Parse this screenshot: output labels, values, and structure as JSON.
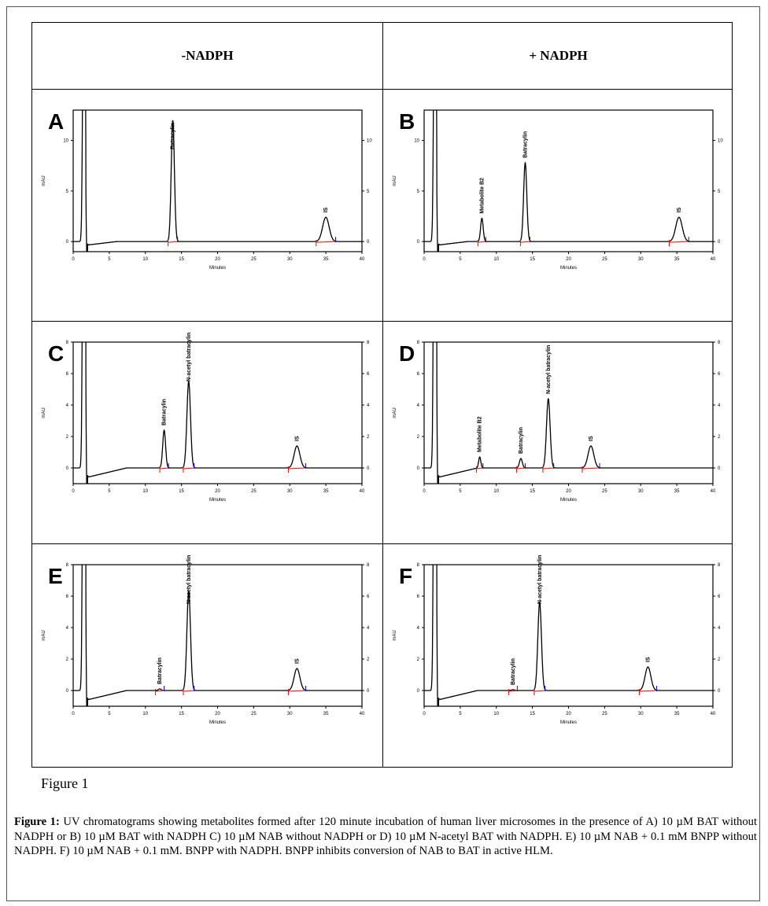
{
  "header": {
    "left": "-NADPH",
    "right": "+ NADPH"
  },
  "figure_label": "Figure 1",
  "caption": {
    "lead": "Figure 1:",
    "text": " UV chromatograms showing metabolites formed after 120 minute incubation of human liver microsomes in the presence of A) 10 µM BAT without NADPH or B) 10 µM BAT with NADPH C) 10 µM NAB without NADPH or D) 10 µM N-acetyl BAT with NADPH. E) 10 µM NAB + 0.1 mM BNPP without NADPH. F) 10 µM NAB + 0.1 mM. BNPP with NADPH. BNPP inhibits conversion of NAB to BAT in active HLM."
  },
  "colors": {
    "trace": "#000000",
    "start_marker": "#ff0000",
    "end_marker": "#0000ff"
  },
  "chart_data": [
    {
      "panel": "A",
      "type": "line",
      "xlabel": "Minutes",
      "ylabel": "mAU",
      "xlim": [
        0,
        40
      ],
      "ylim": [
        -1,
        13
      ],
      "xticks": [
        0,
        5,
        10,
        15,
        20,
        25,
        30,
        35,
        40
      ],
      "yticks": [
        0,
        5,
        10
      ],
      "baseline_dip": false,
      "peaks": [
        {
          "rt": 1.5,
          "height": 40,
          "width": 0.15,
          "label": ""
        },
        {
          "rt": 13.8,
          "height": 12.0,
          "width": 0.22,
          "label": "Batracylin"
        },
        {
          "rt": 35.0,
          "height": 2.4,
          "width": 0.45,
          "label": "IS"
        }
      ]
    },
    {
      "panel": "B",
      "type": "line",
      "xlabel": "Minutes",
      "ylabel": "mAU",
      "xlim": [
        0,
        40
      ],
      "ylim": [
        -1,
        13
      ],
      "xticks": [
        0,
        5,
        10,
        15,
        20,
        25,
        30,
        35,
        40
      ],
      "yticks": [
        0,
        5,
        10
      ],
      "baseline_dip": false,
      "peaks": [
        {
          "rt": 1.5,
          "height": 40,
          "width": 0.15,
          "label": ""
        },
        {
          "rt": 8.0,
          "height": 2.3,
          "width": 0.18,
          "label": "Metabolite B2"
        },
        {
          "rt": 14.0,
          "height": 7.8,
          "width": 0.22,
          "label": "Batracylin"
        },
        {
          "rt": 35.3,
          "height": 2.4,
          "width": 0.45,
          "label": "IS"
        }
      ]
    },
    {
      "panel": "C",
      "type": "line",
      "xlabel": "Minutes",
      "ylabel": "mAU",
      "xlim": [
        0,
        40
      ],
      "ylim": [
        -1,
        8
      ],
      "xticks": [
        0,
        5,
        10,
        15,
        20,
        25,
        30,
        35,
        40
      ],
      "yticks": [
        0,
        2,
        4,
        6,
        8
      ],
      "baseline_dip": true,
      "peaks": [
        {
          "rt": 1.5,
          "height": 40,
          "width": 0.15,
          "label": ""
        },
        {
          "rt": 12.6,
          "height": 2.4,
          "width": 0.2,
          "label": "Batracylin"
        },
        {
          "rt": 16.0,
          "height": 5.5,
          "width": 0.25,
          "label": "N-acetyl batracylin"
        },
        {
          "rt": 31.0,
          "height": 1.4,
          "width": 0.4,
          "label": "IS"
        }
      ]
    },
    {
      "panel": "D",
      "type": "line",
      "xlabel": "Minutes",
      "ylabel": "mAU",
      "xlim": [
        0,
        40
      ],
      "ylim": [
        -1,
        8
      ],
      "xticks": [
        0,
        5,
        10,
        15,
        20,
        25,
        30,
        35,
        40
      ],
      "yticks": [
        0,
        2,
        4,
        6,
        8
      ],
      "baseline_dip": true,
      "peaks": [
        {
          "rt": 1.5,
          "height": 40,
          "width": 0.15,
          "label": ""
        },
        {
          "rt": 7.7,
          "height": 0.7,
          "width": 0.15,
          "label": "Metabolite B2"
        },
        {
          "rt": 13.4,
          "height": 0.6,
          "width": 0.2,
          "label": "Batracylin"
        },
        {
          "rt": 17.2,
          "height": 4.4,
          "width": 0.25,
          "label": "N-acetyl batracylin"
        },
        {
          "rt": 23.1,
          "height": 1.4,
          "width": 0.4,
          "label": "IS"
        }
      ]
    },
    {
      "panel": "E",
      "type": "line",
      "xlabel": "Minutes",
      "ylabel": "mAU",
      "xlim": [
        0,
        40
      ],
      "ylim": [
        -1,
        8
      ],
      "xticks": [
        0,
        5,
        10,
        15,
        20,
        25,
        30,
        35,
        40
      ],
      "yticks": [
        0,
        2,
        4,
        6,
        8
      ],
      "baseline_dip": true,
      "peaks": [
        {
          "rt": 1.5,
          "height": 40,
          "width": 0.15,
          "label": ""
        },
        {
          "rt": 12.0,
          "height": 0.1,
          "width": 0.2,
          "label": "Batracylin"
        },
        {
          "rt": 16.0,
          "height": 6.3,
          "width": 0.25,
          "label": "N-acetyl batracylin"
        },
        {
          "rt": 31.0,
          "height": 1.4,
          "width": 0.4,
          "label": "IS"
        }
      ]
    },
    {
      "panel": "F",
      "type": "line",
      "xlabel": "Minutes",
      "ylabel": "mAU",
      "xlim": [
        0,
        40
      ],
      "ylim": [
        -1,
        8
      ],
      "xticks": [
        0,
        5,
        10,
        15,
        20,
        25,
        30,
        35,
        40
      ],
      "yticks": [
        0,
        2,
        4,
        6,
        8
      ],
      "baseline_dip": true,
      "peaks": [
        {
          "rt": 1.5,
          "height": 40,
          "width": 0.15,
          "label": ""
        },
        {
          "rt": 12.3,
          "height": 0.05,
          "width": 0.2,
          "label": "Batracylin"
        },
        {
          "rt": 16.0,
          "height": 5.6,
          "width": 0.25,
          "label": "N-acetyl batracylin"
        },
        {
          "rt": 31.0,
          "height": 1.5,
          "width": 0.4,
          "label": "IS"
        }
      ]
    }
  ]
}
